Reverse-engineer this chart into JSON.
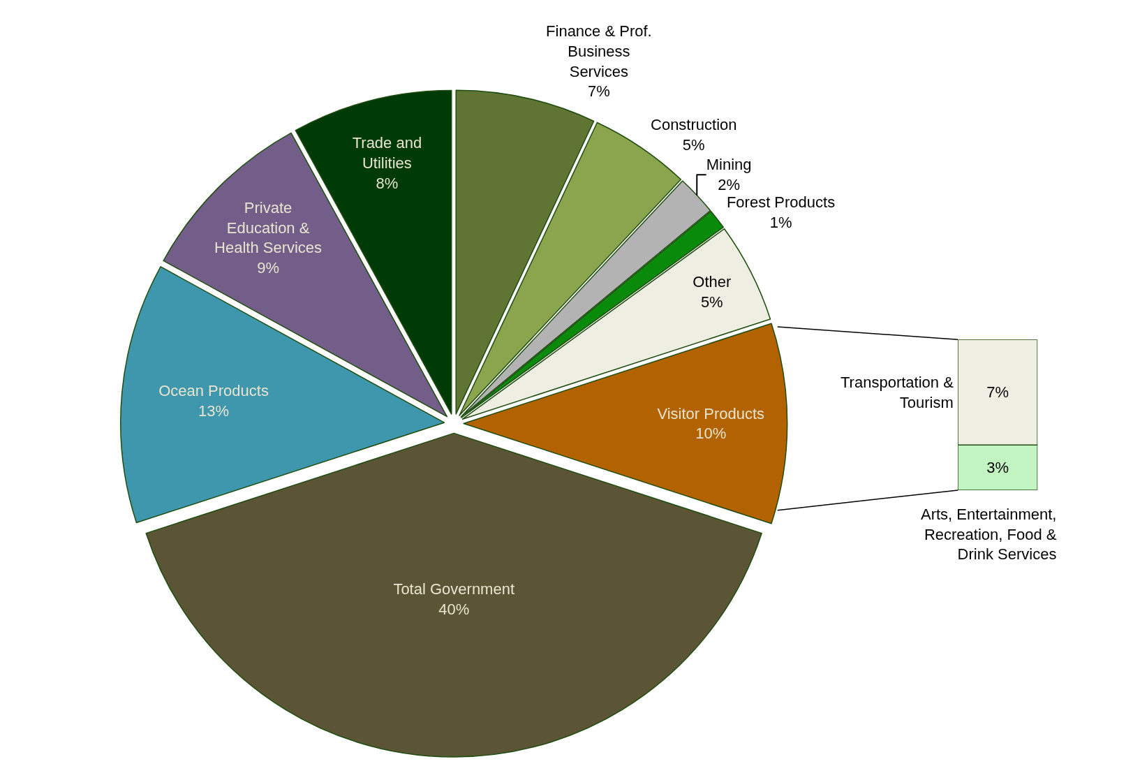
{
  "chart_data": [
    {
      "type": "pie",
      "categories": [
        "Finance & Prof. Business Services",
        "Construction",
        "Mining",
        "Forest Products",
        "Other",
        "Visitor Products",
        "Total Government",
        "Ocean Products",
        "Private Education & Health Services",
        "Trade and Utilities"
      ],
      "values": [
        7,
        5,
        2,
        1,
        5,
        10,
        40,
        13,
        9,
        8
      ],
      "value_labels": [
        "7%",
        "5%",
        "2%",
        "1%",
        "5%",
        "10%",
        "40%",
        "13%",
        "9%",
        "8%"
      ],
      "colors": [
        "#607534",
        "#8ba44e",
        "#b3b3b3",
        "#0a8a0a",
        "#eeeee3",
        "#b36200",
        "#5b5536",
        "#3e97ad",
        "#735e8a",
        "#003a06"
      ]
    },
    {
      "type": "bar",
      "stacked": true,
      "data_labels": true,
      "categories": [
        null
      ],
      "series": [
        {
          "name": "Arts, Entertainment, Recreation, Food & Drink Services",
          "color": "#c2f5c2",
          "values": [
            3
          ],
          "value_labels": [
            "3%"
          ]
        },
        {
          "name": "Transportation & Tourism",
          "color": "#eeeee3",
          "values": [
            7
          ],
          "value_labels": [
            "7%"
          ]
        }
      ]
    }
  ]
}
